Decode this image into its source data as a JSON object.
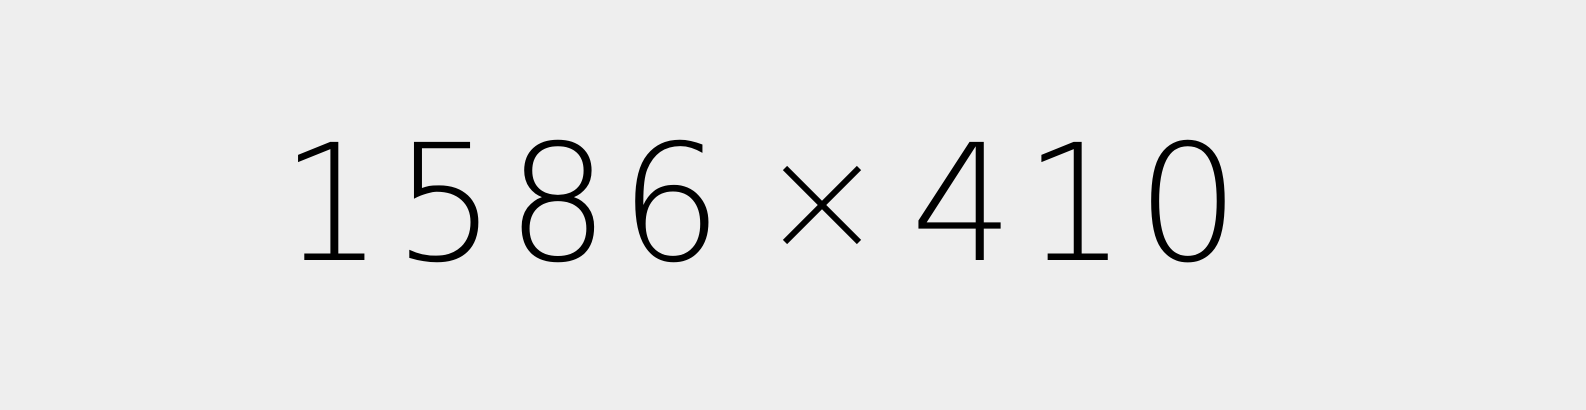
{
  "placeholder": {
    "width_text": "1586",
    "height_text": "410",
    "separator_icon": "multiply-icon",
    "background_color": "#eeeeee",
    "text_color": "#000000"
  }
}
